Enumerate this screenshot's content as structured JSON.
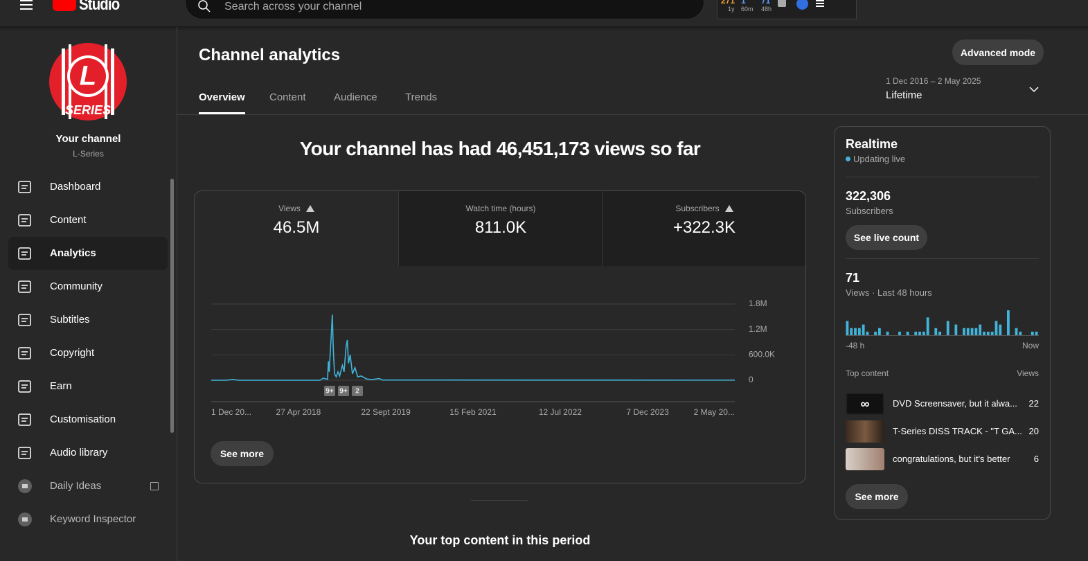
{
  "header": {
    "logo": "Studio",
    "search_placeholder": "Search across your channel",
    "stats": [
      {
        "value": "271",
        "period": "1y"
      },
      {
        "value": "1",
        "period": "60m"
      },
      {
        "value": "71",
        "period": "48h"
      }
    ]
  },
  "sidebar": {
    "avatar_letter": "L",
    "avatar_text": "SERIES",
    "channel_title": "Your channel",
    "channel_name": "L-Series",
    "nav": [
      "Dashboard",
      "Content",
      "Analytics",
      "Community",
      "Subtitles",
      "Copyright",
      "Earn",
      "Customisation",
      "Audio library"
    ],
    "active_index": 2,
    "extensions": [
      "Daily Ideas",
      "Keyword Inspector"
    ]
  },
  "main": {
    "title": "Channel analytics",
    "advanced_button": "Advanced mode",
    "tabs": [
      "Overview",
      "Content",
      "Audience",
      "Trends"
    ],
    "date_range": "1 Dec 2016 – 2 May 2025",
    "period": "Lifetime",
    "headline": "Your channel has had 46,451,173 views so far",
    "metrics": [
      {
        "label": "Views",
        "value": "46.5M",
        "warning": true
      },
      {
        "label": "Watch time (hours)",
        "value": "811.0K",
        "warning": false
      },
      {
        "label": "Subscribers",
        "value": "+322.3K",
        "warning": true
      }
    ],
    "see_more": "See more",
    "top_content_heading": "Your top content in this period"
  },
  "chart_data": [
    {
      "type": "line",
      "x": [
        "2016-12-01",
        "2017-03-01",
        "2017-04-06",
        "2017-05-10",
        "2018-09-01",
        "2018-09-20",
        "2018-10-15",
        "2018-10-20",
        "2018-10-25",
        "2018-10-30",
        "2018-11-05",
        "2018-11-12",
        "2018-11-18",
        "2018-11-25",
        "2018-12-05",
        "2018-12-15",
        "2018-12-25",
        "2019-01-10",
        "2019-01-20",
        "2019-02-01",
        "2019-02-08",
        "2019-02-15",
        "2019-02-25",
        "2019-03-10",
        "2019-03-25",
        "2019-04-10",
        "2019-05-01",
        "2019-06-01",
        "2019-07-01",
        "2019-08-15",
        "2019-09-01",
        "2025-05-02"
      ],
      "values": [
        0,
        0,
        20000,
        0,
        0,
        50000,
        20000,
        450000,
        200000,
        600000,
        1000000,
        1550000,
        700000,
        150000,
        80000,
        200000,
        100000,
        350000,
        200000,
        800000,
        950000,
        400000,
        600000,
        150000,
        300000,
        80000,
        100000,
        30000,
        15000,
        40000,
        5000,
        2000
      ],
      "color": "#41b4d9",
      "xlim": [
        "2016-12-01",
        "2025-05-02"
      ],
      "xticks": [
        {
          "value": "2016-12-01",
          "label": "1 Dec 20..."
        },
        {
          "value": "2018-04-27",
          "label": "27 Apr 2018"
        },
        {
          "value": "2019-09-22",
          "label": "22 Sept 2019"
        },
        {
          "value": "2021-02-15",
          "label": "15 Feb 2021"
        },
        {
          "value": "2022-07-12",
          "label": "12 Jul 2022"
        },
        {
          "value": "2023-12-07",
          "label": "7 Dec 2023"
        },
        {
          "value": "2025-05-02",
          "label": "2 May 20..."
        }
      ],
      "ylim": [
        0,
        1800000
      ],
      "yticks": [
        0,
        {
          "value": 600000,
          "label": "600.0K"
        },
        {
          "value": 1200000,
          "label": "1.2M"
        },
        {
          "value": 1800000,
          "label": "1.8M"
        }
      ],
      "grid": true,
      "annotations": [
        "9+",
        "9+",
        "2"
      ]
    },
    {
      "type": "bar",
      "values": [
        4,
        2,
        2,
        2,
        3,
        1,
        0,
        1,
        2,
        0,
        1,
        0,
        0,
        1,
        0,
        1,
        0,
        1,
        1,
        1,
        5,
        0,
        2,
        1,
        0,
        4,
        0,
        3,
        0,
        2,
        2,
        2,
        2,
        3,
        1,
        1,
        1,
        4,
        3,
        0,
        7,
        0,
        2,
        1,
        0,
        0,
        1,
        1
      ],
      "color": "#41b4d9",
      "x_start_label": "-48 h",
      "x_end_label": "Now"
    }
  ],
  "realtime": {
    "title": "Realtime",
    "status": "Updating live",
    "subscribers": "322,306",
    "subscribers_label": "Subscribers",
    "live_button": "See live count",
    "views": "71",
    "views_label": "Views · Last 48 hours",
    "top_content_label": "Top content",
    "views_column": "Views",
    "items": [
      {
        "title": "DVD Screensaver, but it alwa...",
        "views": 22
      },
      {
        "title": "T-Series DISS TRACK - \"T GA...",
        "views": 20
      },
      {
        "title": "congratulations, but it's better",
        "views": 6
      }
    ],
    "see_more": "See more"
  }
}
